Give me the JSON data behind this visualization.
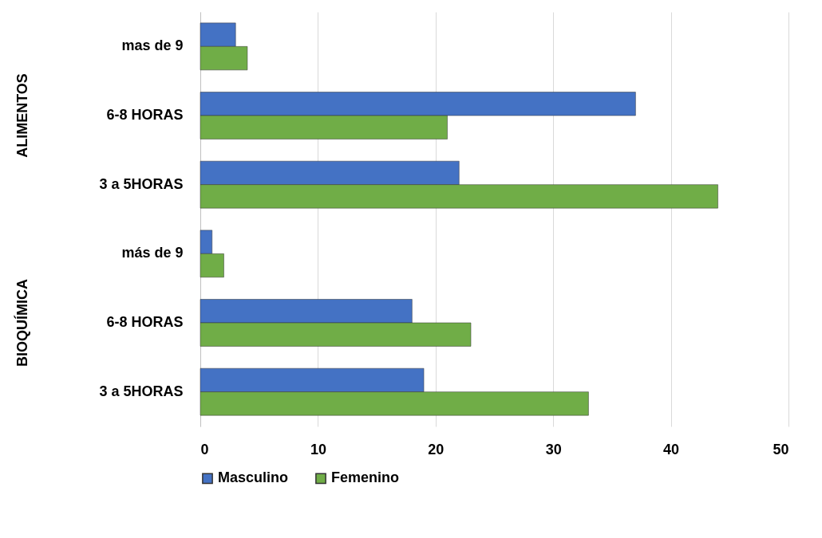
{
  "chart_data": {
    "type": "bar",
    "orientation": "horizontal",
    "categories": [
      "mas de 9",
      "6-8 HORAS",
      "3 a 5HORAS",
      "más de 9",
      "6-8 HORAS",
      "3 a 5HORAS"
    ],
    "series": [
      {
        "name": "Masculino",
        "color": "#4472c4",
        "values": [
          3,
          37,
          22,
          1,
          18,
          19
        ]
      },
      {
        "name": "Femenino",
        "color": "#70ad47",
        "values": [
          4,
          21,
          44,
          2,
          23,
          33
        ]
      }
    ],
    "annotations": [
      "ALIMENTOS",
      "BIOQUÍMICA"
    ],
    "xlim": [
      0,
      50
    ],
    "xticks": [
      0,
      10,
      20,
      30,
      40,
      50
    ],
    "grid": "x",
    "legend": "bottom"
  }
}
